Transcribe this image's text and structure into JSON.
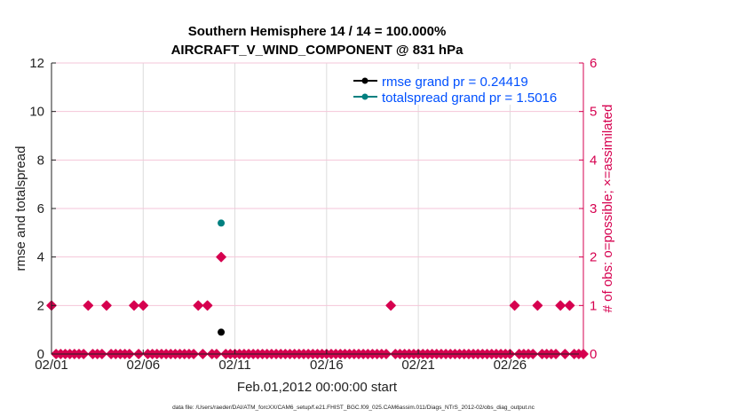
{
  "chart_data": {
    "type": "scatter",
    "title_line1": "Southern Hemisphere 14 / 14 = 100.000%",
    "title_line2": "AIRCRAFT_V_WIND_COMPONENT @ 831 hPa",
    "xlabel": "Feb.01,2012 00:00:00 start",
    "ylabel": "rmse and totalspread",
    "y2label": "# of obs: o=possible; ×=assimilated",
    "footer": "data file: /Users/raeder/DAI/ATM_forcXX/CAM6_setup/f.e21.FHIST_BGC.f09_025.CAM6assim.011/Diags_NTrS_2012-02/obs_diag_output.nc",
    "xlim_days": [
      0,
      29
    ],
    "ylim": [
      0,
      12
    ],
    "y2lim": [
      0,
      6
    ],
    "xticks": [
      {
        "day": 0,
        "label": "02/01"
      },
      {
        "day": 5,
        "label": "02/06"
      },
      {
        "day": 10,
        "label": "02/11"
      },
      {
        "day": 15,
        "label": "02/16"
      },
      {
        "day": 20,
        "label": "02/21"
      },
      {
        "day": 25,
        "label": "02/26"
      }
    ],
    "yticks": [
      "0",
      "2",
      "4",
      "6",
      "8",
      "10",
      "12"
    ],
    "y2ticks": [
      "0",
      "1",
      "2",
      "3",
      "4",
      "5",
      "6"
    ],
    "legend": {
      "placement": "top-right",
      "entries": [
        "rmse grand pr = 0.24419",
        "totalspread grand pr = 1.5016"
      ]
    },
    "colors": {
      "rmse": "#000000",
      "totalspread": "#008080",
      "obs": "#d6004f",
      "legend_text": "#0050ff"
    },
    "series": [
      {
        "name": "rmse",
        "points": [
          {
            "day": 9.25,
            "value": 0.9
          }
        ]
      },
      {
        "name": "totalspread",
        "points": [
          {
            "day": 9.25,
            "value": 5.4
          }
        ]
      }
    ],
    "obs_step_days": 0.25,
    "obs_possible": [
      {
        "day": 0,
        "count": 1
      },
      {
        "day": 2,
        "count": 1
      },
      {
        "day": 3,
        "count": 1
      },
      {
        "day": 4.5,
        "count": 1
      },
      {
        "day": 5,
        "count": 1
      },
      {
        "day": 8,
        "count": 1
      },
      {
        "day": 8.5,
        "count": 1
      },
      {
        "day": 9.25,
        "count": 2
      },
      {
        "day": 18.5,
        "count": 1
      },
      {
        "day": 25.25,
        "count": 1
      },
      {
        "day": 26.5,
        "count": 1
      },
      {
        "day": 27.75,
        "count": 1
      },
      {
        "day": 28.25,
        "count": 1
      }
    ]
  }
}
